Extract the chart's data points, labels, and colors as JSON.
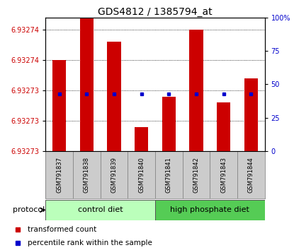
{
  "title": "GDS4812 / 1385794_at",
  "samples": [
    "GSM791837",
    "GSM791838",
    "GSM791839",
    "GSM791840",
    "GSM791841",
    "GSM791842",
    "GSM791843",
    "GSM791844"
  ],
  "ylim_min": 6.932728,
  "ylim_max": 6.93275,
  "ytick_vals": [
    6.932728,
    6.932733,
    6.932738,
    6.932743,
    6.932748
  ],
  "ytick_labels": [
    "6.93273",
    "6.93273",
    "6.93273",
    "6.93274",
    "6.93274"
  ],
  "right_yticks": [
    0,
    25,
    50,
    75,
    100
  ],
  "bar_color": "#cc0000",
  "dot_color": "#0000cc",
  "red_bar_tops": [
    6.932743,
    6.93275,
    6.932746,
    6.932732,
    6.932737,
    6.932748,
    6.932736,
    6.93274
  ],
  "perc_ranks": [
    43,
    43,
    43,
    43,
    43,
    43,
    43,
    43
  ],
  "ctrl_color": "#bbffbb",
  "hp_color": "#55cc55",
  "legend_red": "transformed count",
  "legend_blue": "percentile rank within the sample",
  "protocol_label": "protocol"
}
